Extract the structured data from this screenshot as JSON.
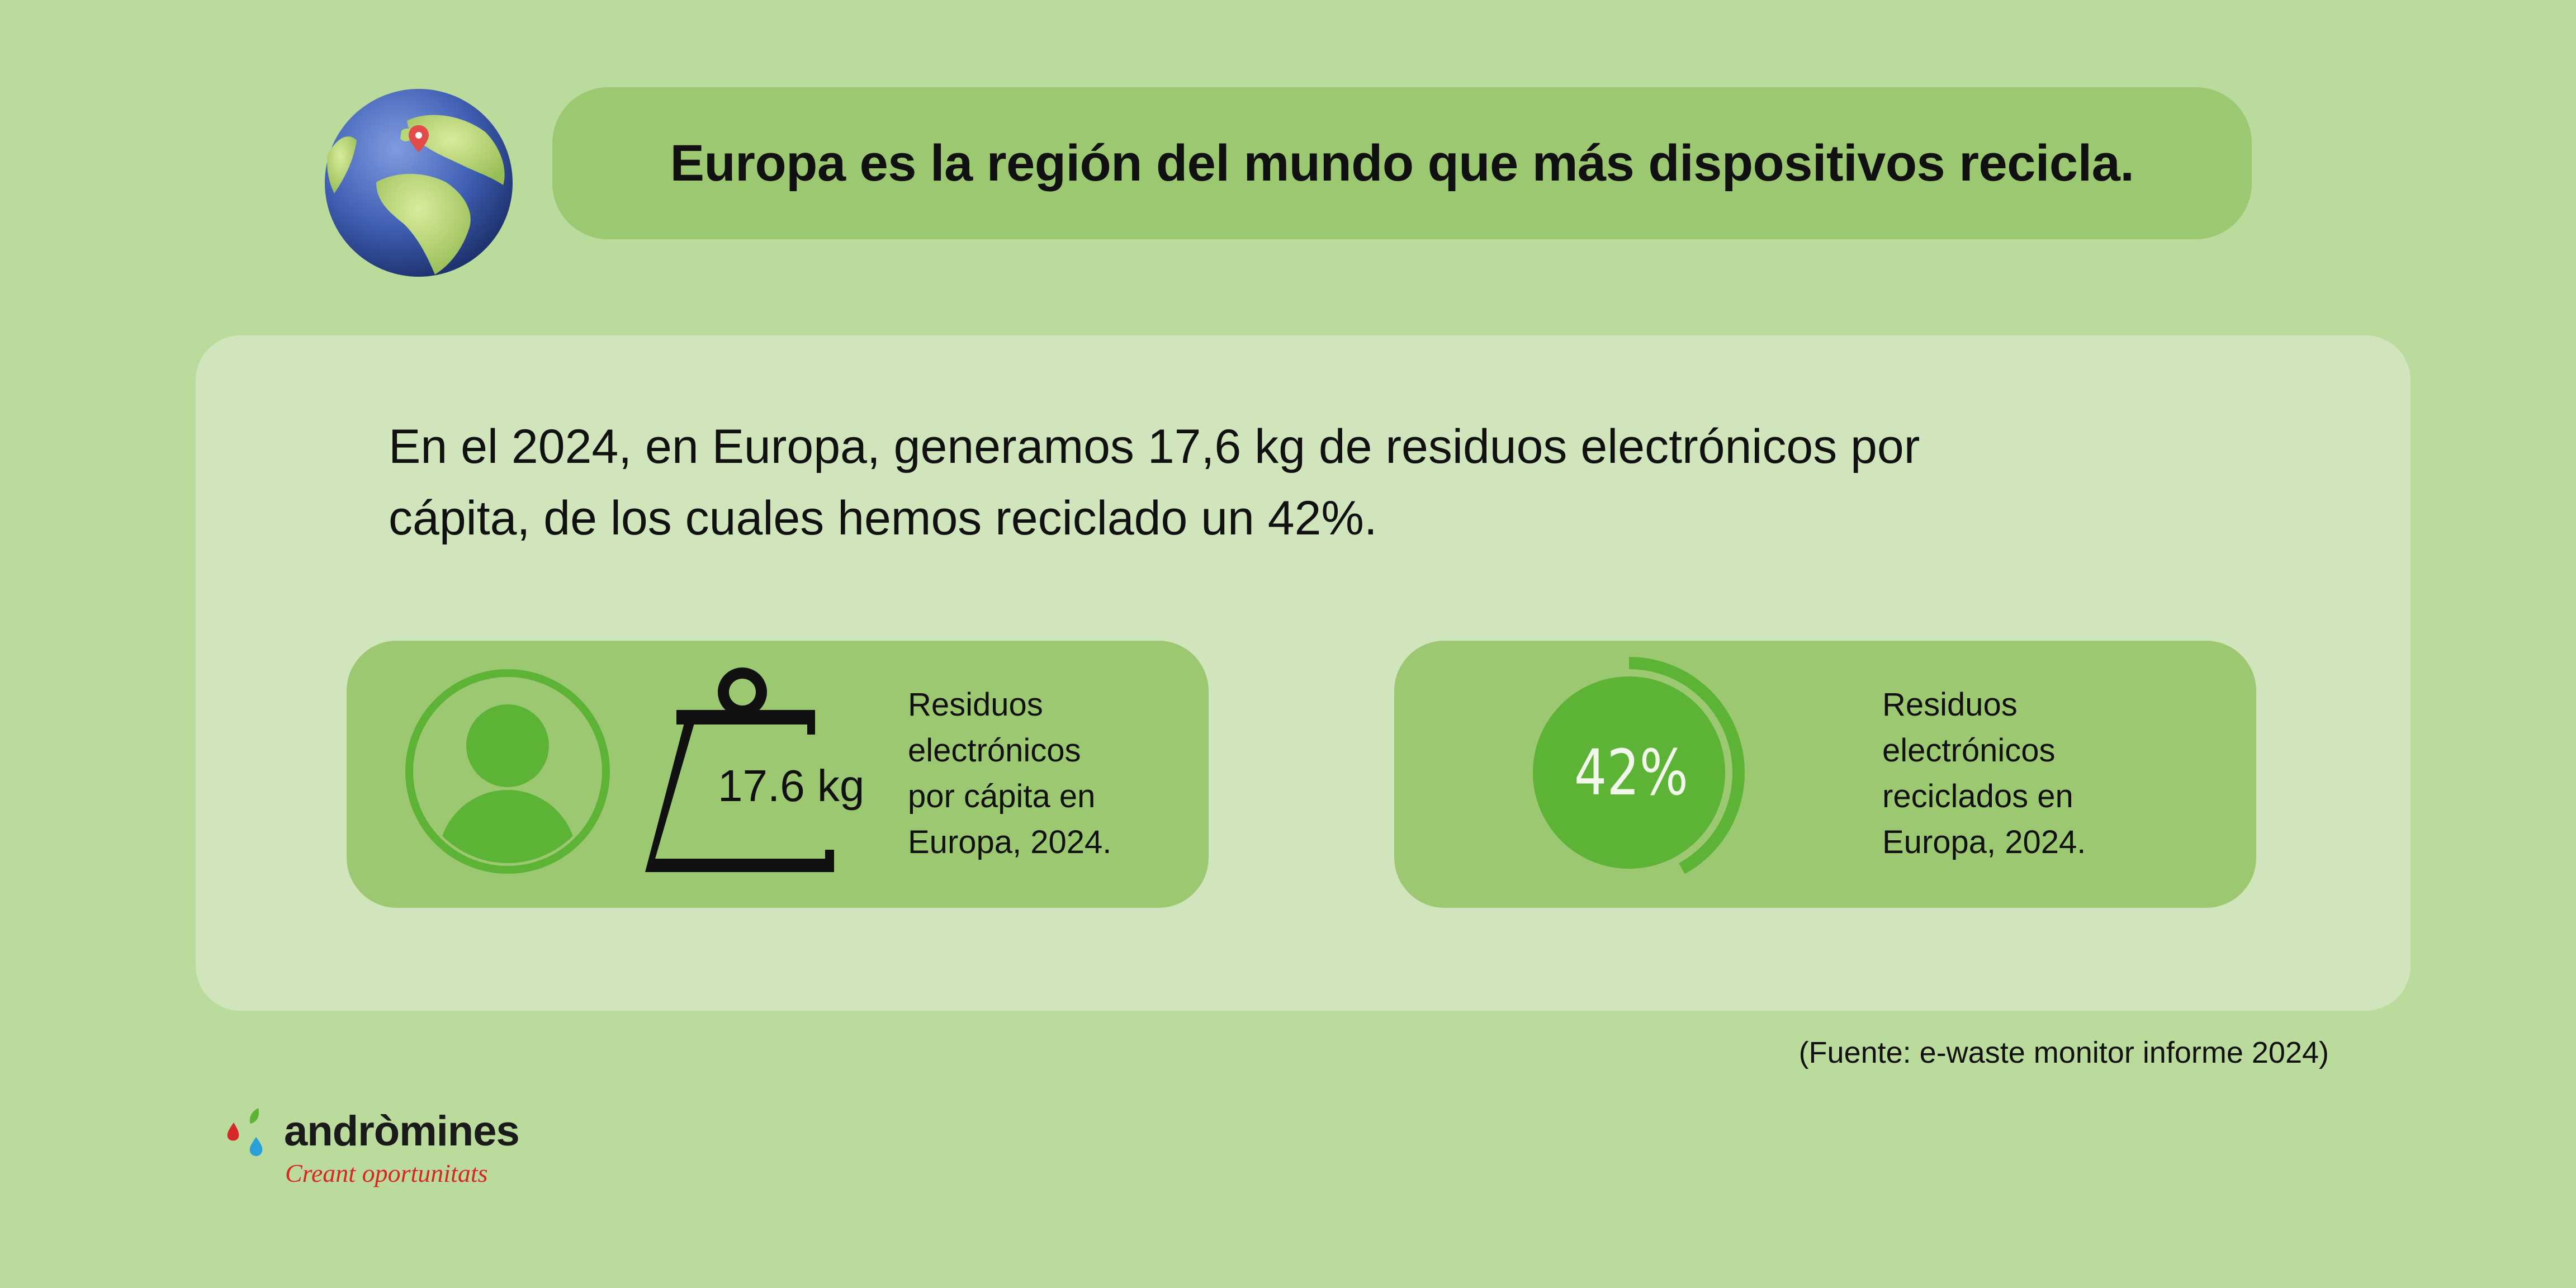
{
  "header": {
    "title": "Europa es la región del mundo que más dispositivos recicla."
  },
  "intro": {
    "line1": "En el 2024, en Europa, generamos 17,6 kg de residuos electrónicos por",
    "line2": "cápita, de los cuales hemos reciclado un 42%."
  },
  "stats": {
    "weight": {
      "value": "17.6 kg",
      "label_lines": [
        "Residuos",
        "electrónicos",
        "por cápita en",
        "Europa, 2024."
      ],
      "icons": [
        "person-icon",
        "weight-scale-icon"
      ]
    },
    "percent": {
      "value": "42%",
      "fraction": 0.42,
      "label_lines": [
        "Residuos",
        "electrónicos",
        "reciclados en",
        "Europa, 2024."
      ],
      "icons": [
        "donut-progress-icon"
      ]
    }
  },
  "source": "(Fuente: e-waste monitor informe 2024)",
  "logo": {
    "name": "andròmines",
    "tagline": "Creant oportunitats"
  },
  "colors": {
    "background": "#badb9c",
    "panel": "#d0e5bb",
    "card": "#9dc872",
    "accent_green": "#5db336",
    "brand_red": "#d62828",
    "brand_blue": "#2a9fd8"
  }
}
